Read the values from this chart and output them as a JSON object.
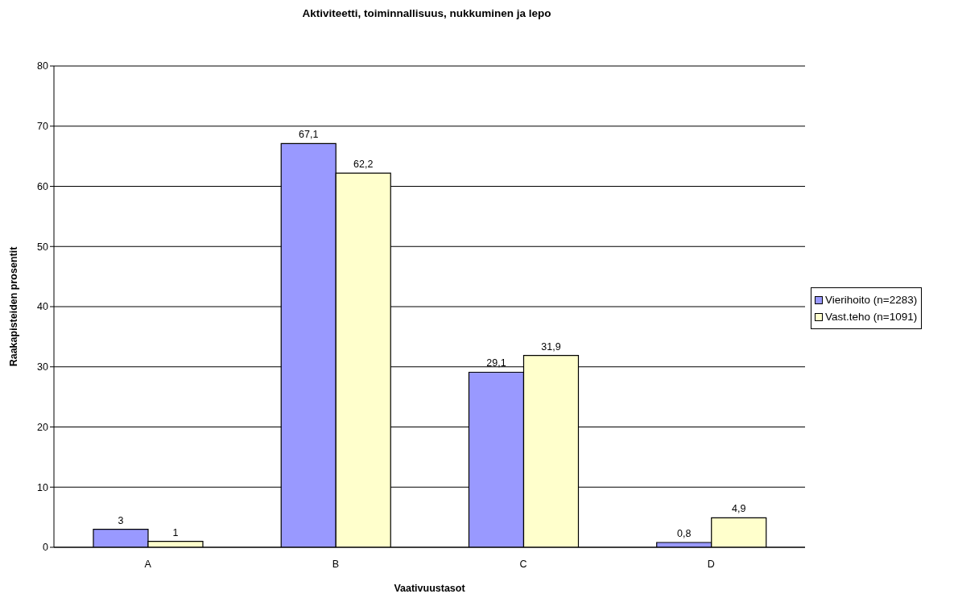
{
  "chart_data": {
    "type": "bar",
    "title": "Aktiviteetti, toiminnallisuus, nukkuminen ja lepo",
    "xlabel": "Vaativuustasot",
    "ylabel": "Raakapisteiden prosentit",
    "categories": [
      "A",
      "B",
      "C",
      "D"
    ],
    "series": [
      {
        "name": "Vierihoito (n=2283)",
        "color": "#9999ff",
        "values": [
          3,
          67.1,
          29.1,
          0.8
        ],
        "value_labels": [
          "3",
          "67,1",
          "29,1",
          "0,8"
        ]
      },
      {
        "name": "Vast.teho (n=1091)",
        "color": "#ffffcc",
        "values": [
          1,
          62.2,
          31.9,
          4.9
        ],
        "value_labels": [
          "1",
          "62,2",
          "31,9",
          "4,9"
        ]
      }
    ],
    "ylim": [
      0,
      80
    ],
    "yticks": [
      0,
      10,
      20,
      30,
      40,
      50,
      60,
      70,
      80
    ],
    "grid": "y",
    "legend": "right"
  }
}
